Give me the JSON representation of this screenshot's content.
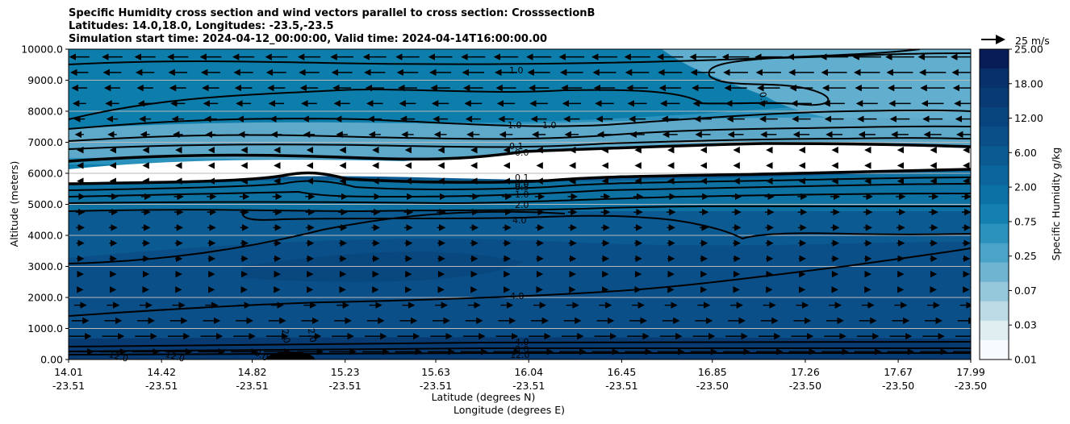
{
  "chart_data": {
    "type": "contour",
    "title_lines": [
      "Specific Humidity cross section and wind vectors parallel to cross section: CrosssectionB",
      "Latitudes: 14.0,18.0, Longitudes: -23.5,-23.5",
      "Simulation start time: 2024-04-12_00:00:00, Valid time: 2024-04-14T16:00:00.00"
    ],
    "ylabel": "Altitude (meters)",
    "xlabel_lat": "Latitude (degrees N)",
    "xlabel_lon": "Longitude (degrees E)",
    "ylim": [
      0,
      10000
    ],
    "y_ticks": [
      "0.00",
      "1000.0",
      "2000.0",
      "3000.0",
      "4000.0",
      "5000.0",
      "6000.0",
      "7000.0",
      "8000.0",
      "9000.0",
      "10000.0"
    ],
    "x_ticks": [
      {
        "lat": "14.01",
        "lon": "-23.51"
      },
      {
        "lat": "14.42",
        "lon": "-23.51"
      },
      {
        "lat": "14.82",
        "lon": "-23.51"
      },
      {
        "lat": "15.23",
        "lon": "-23.51"
      },
      {
        "lat": "15.63",
        "lon": "-23.51"
      },
      {
        "lat": "16.04",
        "lon": "-23.51"
      },
      {
        "lat": "16.45",
        "lon": "-23.51"
      },
      {
        "lat": "16.85",
        "lon": "-23.50"
      },
      {
        "lat": "17.26",
        "lon": "-23.50"
      },
      {
        "lat": "17.67",
        "lon": "-23.50"
      },
      {
        "lat": "17.99",
        "lon": "-23.50"
      }
    ],
    "colorbar": {
      "label": "Specific Humidity g/kg",
      "tick_labels": [
        "25.00",
        "18.00",
        "12.00",
        "6.00",
        "2.00",
        "0.75",
        "0.25",
        "0.07",
        "0.03",
        "0.01"
      ]
    },
    "quiver_key": "25 m/s",
    "contour_labels": [
      "1.0",
      "0.5",
      "1.0",
      "1.0",
      "0.1",
      "0.0",
      "0.0",
      "0.1",
      "0.5",
      "1.0",
      "2.0",
      "4.0",
      "4.0",
      "2.0",
      "4.0",
      "8.0",
      "12.0",
      "12.0",
      "12.0",
      "8.0",
      "2.0"
    ],
    "colors": {
      "moist_low": "#083c78",
      "mid": "#0b5a92",
      "upper": "#0c7aa8",
      "dry": "#62aece",
      "very_dry": "#ffffff"
    }
  }
}
